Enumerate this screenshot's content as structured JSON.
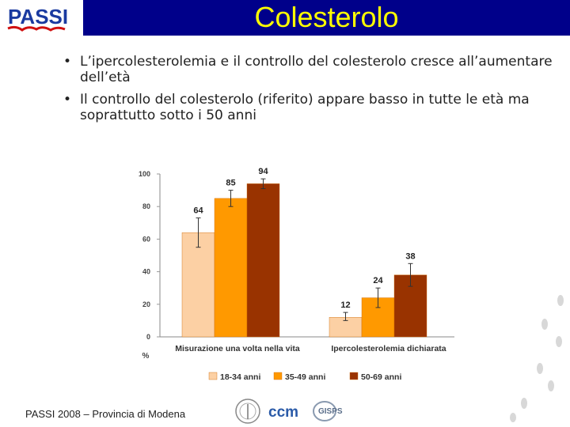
{
  "header": {
    "title": "Colesterolo"
  },
  "logo": {
    "text": "PASSI"
  },
  "bullets": [
    "L’ipercolesterolemia e il controllo del colesterolo cresce all’aumentare dell’età",
    "Il controllo del colesterolo (riferito) appare basso in tutte le età ma soprattutto sotto i 50 anni"
  ],
  "footer": {
    "text": "PASSI 2008 – Provincia di Modena",
    "partner_logos": [
      "ccm",
      "GISPS"
    ]
  },
  "colors": {
    "banner": "#00008a",
    "title": "#ffff00"
  },
  "chart_data": {
    "type": "bar",
    "categories": [
      "Misurazione una volta nella vita",
      "Ipercolesterolemia dichiarata"
    ],
    "series": [
      {
        "name": "18-34 anni",
        "values": [
          64,
          12
        ],
        "color": "#fcd0a4",
        "ci_low": [
          55,
          10
        ],
        "ci_high": [
          73,
          15
        ]
      },
      {
        "name": "35-49 anni",
        "values": [
          85,
          24
        ],
        "color": "#ff9900",
        "ci_low": [
          80,
          18
        ],
        "ci_high": [
          90,
          30
        ]
      },
      {
        "name": "50-69 anni",
        "values": [
          94,
          38
        ],
        "color": "#993300",
        "ci_low": [
          91,
          31
        ],
        "ci_high": [
          97,
          45
        ]
      }
    ],
    "data_labels": [
      "64",
      "85",
      "94",
      "12",
      "24",
      "38"
    ],
    "yticks": [
      "0",
      "20",
      "40",
      "60",
      "80",
      "100"
    ],
    "ylim": [
      0,
      100
    ],
    "ylabel": "%",
    "legend_position": "bottom",
    "grid": false
  }
}
